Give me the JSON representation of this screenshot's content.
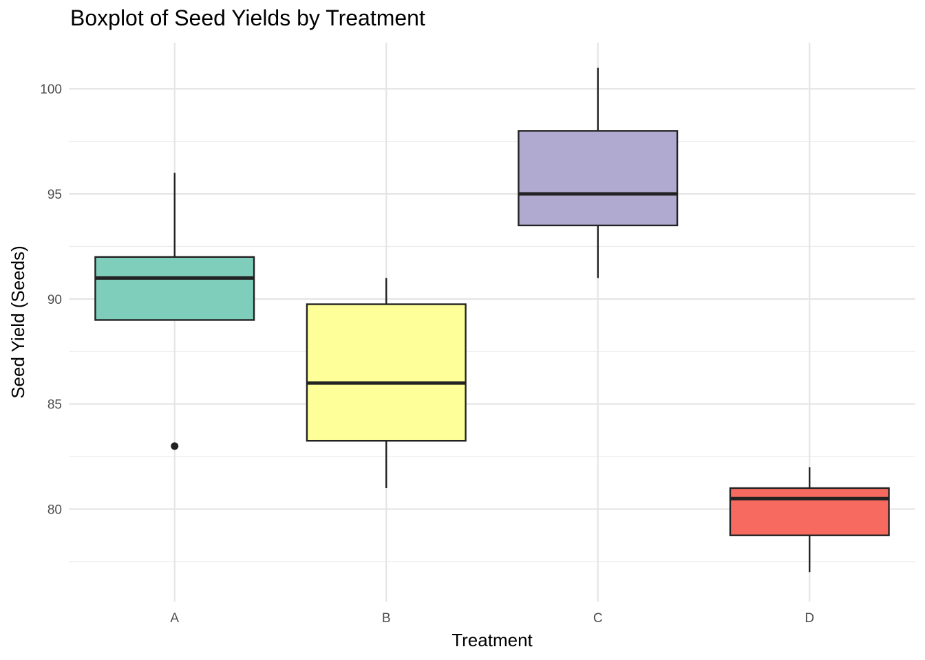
{
  "chart_data": {
    "type": "boxplot",
    "title": "Boxplot of Seed Yields by Treatment",
    "xlabel": "Treatment",
    "ylabel": "Seed Yield (Seeds)",
    "ylim": [
      75.6,
      102.2
    ],
    "yticks": [
      80,
      85,
      90,
      95,
      100
    ],
    "grid": true,
    "legend": "none",
    "categories": [
      "A",
      "B",
      "C",
      "D"
    ],
    "boxes": [
      {
        "category": "A",
        "min": 89,
        "q1": 89,
        "median": 91,
        "q3": 92,
        "max": 96,
        "outliers": [
          83
        ],
        "color": "#7fcdbb"
      },
      {
        "category": "B",
        "min": 81,
        "q1": 83.25,
        "median": 86,
        "q3": 89.75,
        "max": 91,
        "outliers": [],
        "color": "#ffff99"
      },
      {
        "category": "C",
        "min": 91,
        "q1": 93.5,
        "median": 95,
        "q3": 98,
        "max": 101,
        "outliers": [],
        "color": "#b0aad1"
      },
      {
        "category": "D",
        "min": 77,
        "q1": 78.75,
        "median": 80.5,
        "q3": 81,
        "max": 82,
        "outliers": [],
        "color": "#f66a5f"
      }
    ]
  }
}
